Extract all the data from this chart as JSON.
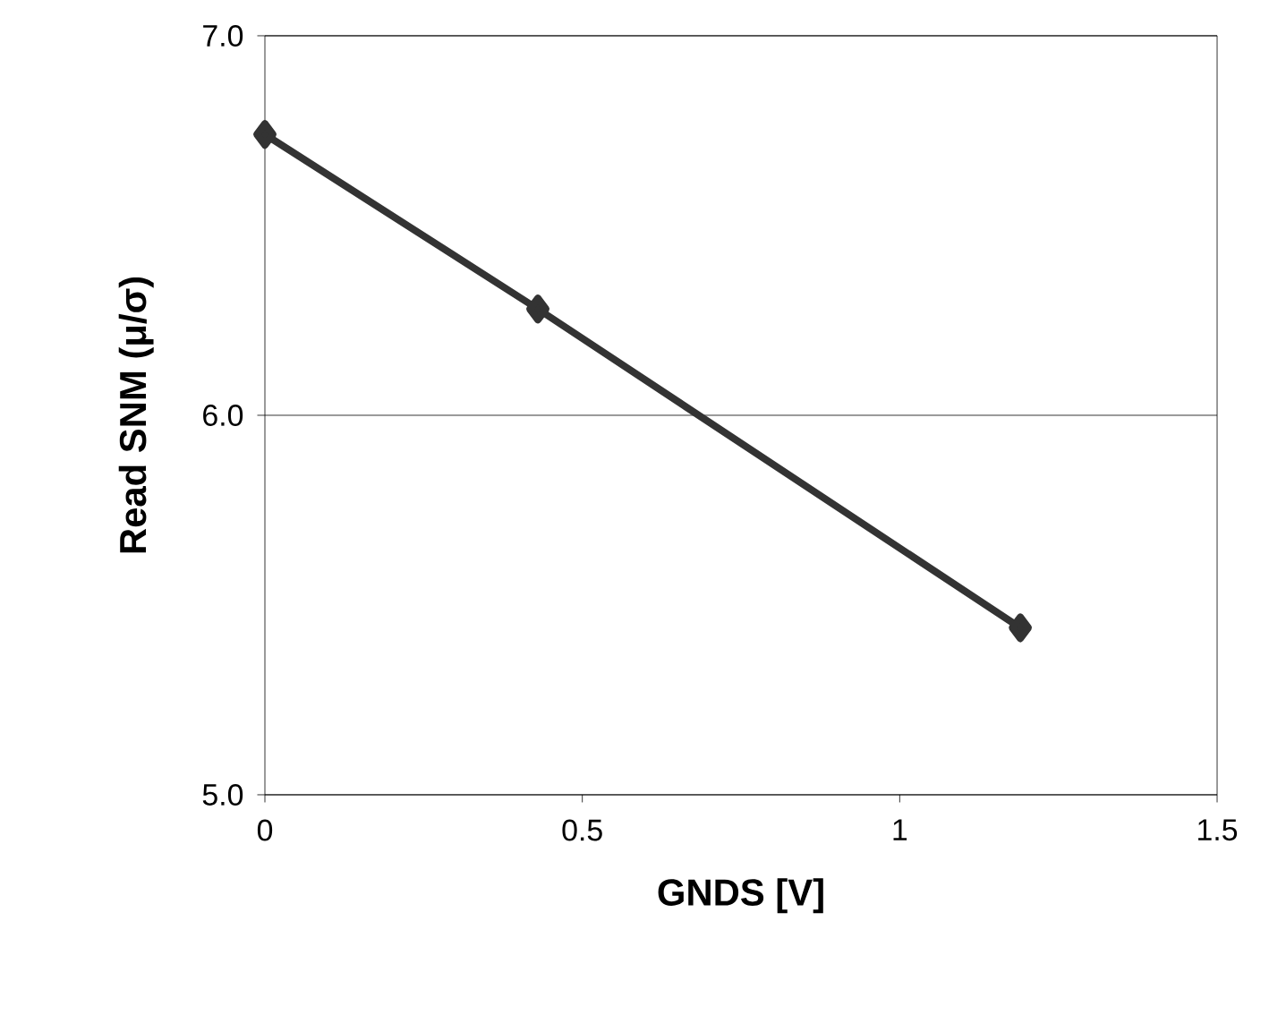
{
  "chart_data": {
    "type": "line",
    "xlabel": "GNDS [V]",
    "ylabel": "Read SNM (μ/σ)",
    "x": [
      0,
      0.43,
      1.19
    ],
    "series": [
      {
        "color": "#333333",
        "values": [
          6.74,
          6.28,
          5.44
        ]
      }
    ],
    "xlim": [
      0,
      1.5
    ],
    "ylim": [
      5.0,
      7.0
    ],
    "xticks": [
      0,
      0.5,
      1,
      1.5
    ],
    "yticks": [
      {
        "value": 5.0,
        "label": "5.0"
      },
      {
        "value": 6.0,
        "label": "6.0"
      },
      {
        "value": 7.0,
        "label": "7.0"
      }
    ],
    "grid": "y",
    "marker": "diamond",
    "line_style": "solid"
  }
}
